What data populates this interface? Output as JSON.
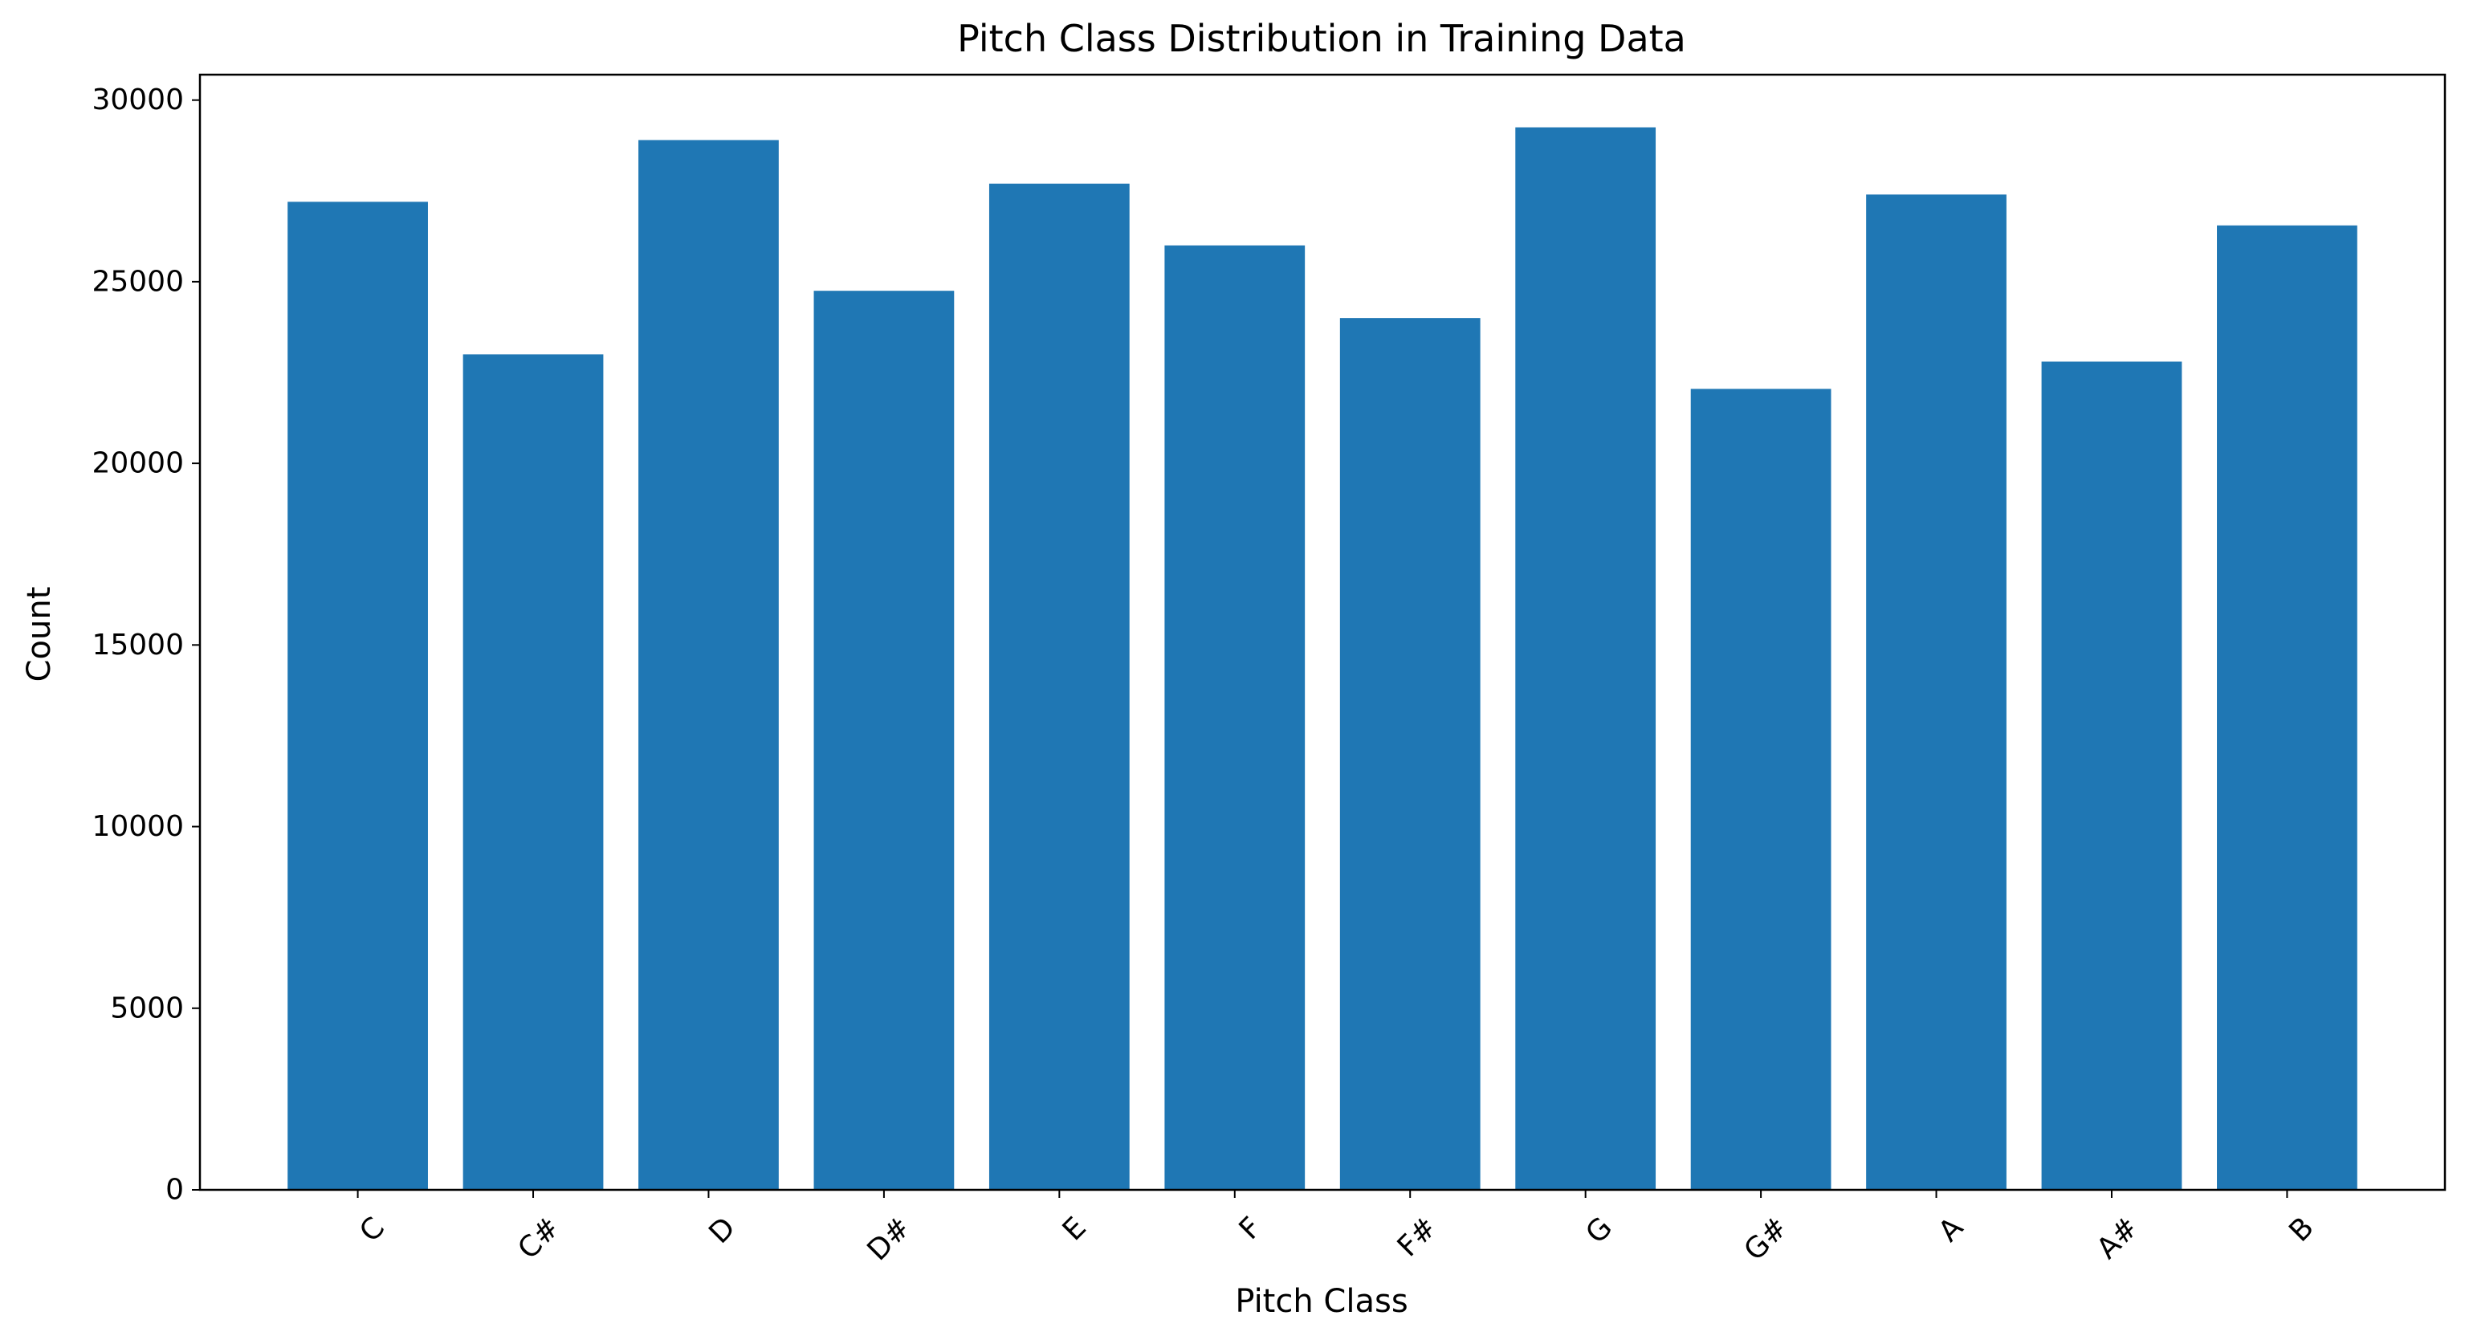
{
  "chart_data": {
    "type": "bar",
    "title": "Pitch Class Distribution in Training Data",
    "xlabel": "Pitch Class",
    "ylabel": "Count",
    "categories": [
      "C",
      "C#",
      "D",
      "D#",
      "E",
      "F",
      "F#",
      "G",
      "G#",
      "A",
      "A#",
      "B"
    ],
    "values": [
      27200,
      23000,
      28900,
      24750,
      27700,
      26000,
      24000,
      29250,
      22050,
      27400,
      22800,
      26550
    ],
    "ylim": [
      0,
      30700
    ],
    "yticks": [
      0,
      5000,
      10000,
      15000,
      20000,
      25000,
      30000
    ],
    "x_tick_rotation": "45 degrees",
    "grid": false,
    "legend": "none",
    "bar_color": "#1f77b4"
  }
}
